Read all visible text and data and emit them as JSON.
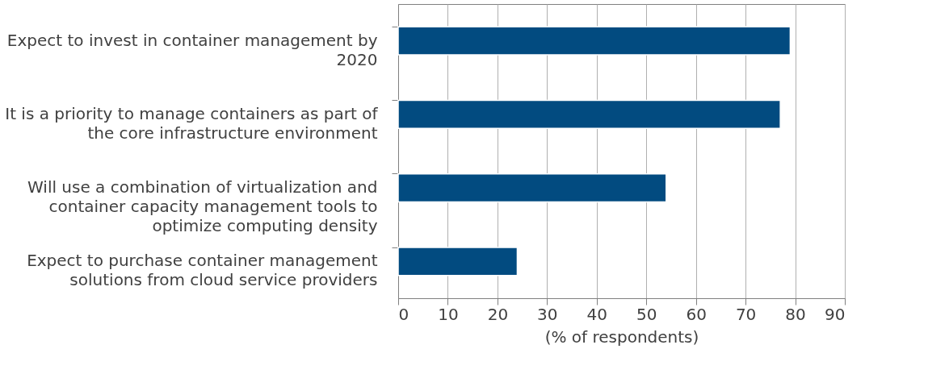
{
  "chart_data": {
    "type": "bar",
    "orientation": "horizontal",
    "xlabel": "(% of respondents)",
    "categories": [
      "Expect to invest in container management by\n2020",
      "It is a priority to manage containers as part of\nthe core infrastructure environment",
      "Will use a combination of virtualization and\ncontainer capacity management tools to\noptimize computing density",
      "Expect to purchase container management\nsolutions from cloud service providers"
    ],
    "values": [
      79,
      77,
      54,
      24
    ],
    "color": "#024b80",
    "xlim": [
      0,
      90
    ],
    "xticks": [
      0,
      10,
      20,
      30,
      40,
      50,
      60,
      70,
      80,
      90
    ],
    "grid": "x"
  }
}
